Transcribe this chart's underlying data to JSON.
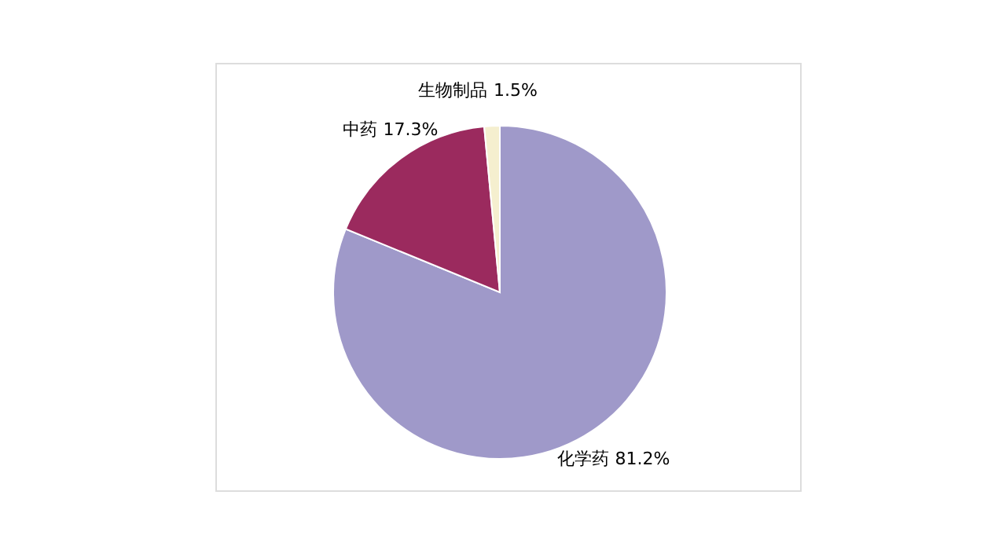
{
  "chart_data": {
    "type": "pie",
    "categories": [
      "化学药",
      "中药",
      "生物制品"
    ],
    "values": [
      81.2,
      17.3,
      1.5
    ],
    "colors": [
      "#9f99c9",
      "#9b2a5e",
      "#f5efcf"
    ],
    "value_labels": [
      "81.2%",
      "17.3%",
      "1.5%"
    ],
    "legend": false
  }
}
